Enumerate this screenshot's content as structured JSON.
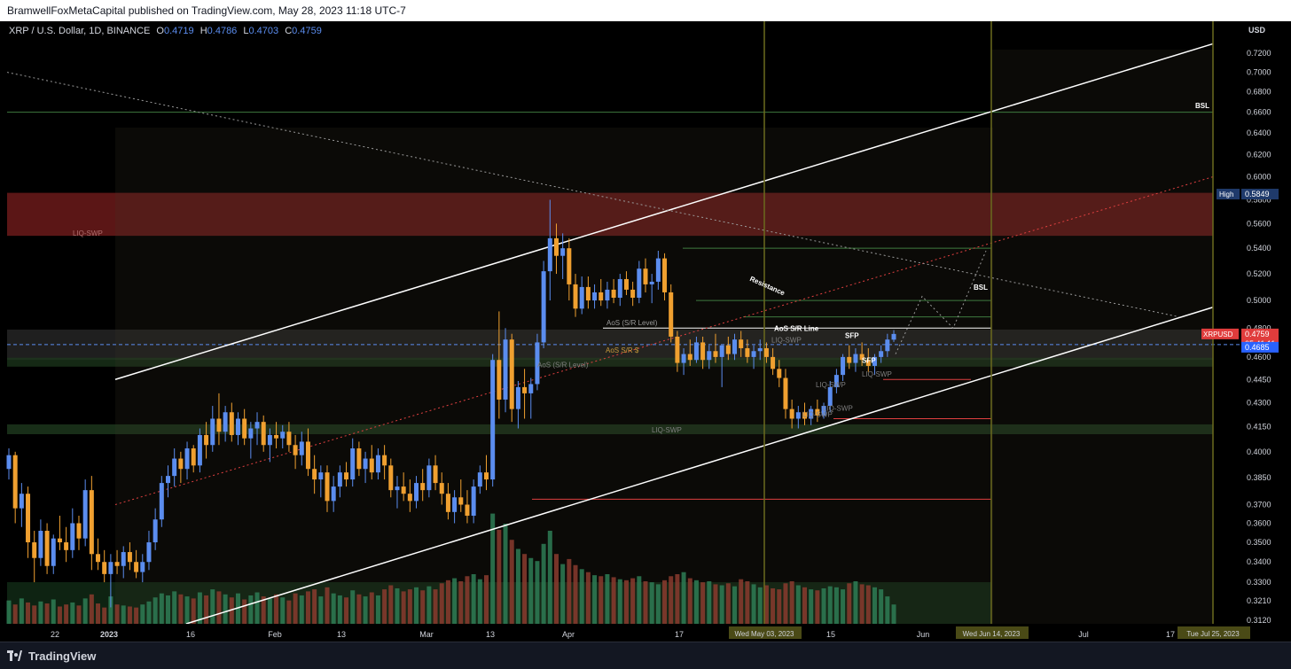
{
  "header": {
    "published_text": "BramwellFoxMetaCapital published on TradingView.com, May 28, 2023 11:18 UTC-7"
  },
  "legend": {
    "symbol": "XRP / U.S. Dollar, 1D, BINANCE",
    "open_label": "O",
    "open": "0.4719",
    "high_label": "H",
    "high": "0.4786",
    "low_label": "L",
    "low": "0.4703",
    "close_label": "C",
    "close": "0.4759"
  },
  "footer": {
    "brand": "TradingView"
  },
  "colors": {
    "bull": "#5b8def",
    "bear": "#f0a030",
    "bg": "#000000",
    "supply_zone": "#7a1e1e",
    "demand_zone": "#1e3a1e",
    "channel": "#ffffff",
    "midline": "#e04040"
  },
  "chart_data": {
    "type": "candlestick",
    "symbol": "XRPUSD",
    "timeframe": "1D",
    "exchange": "BINANCE",
    "currency_label": "USD",
    "y_axis": {
      "scale": "log",
      "range": [
        0.31,
        0.74
      ],
      "ticks": [
        "0.7200",
        "0.7000",
        "0.6800",
        "0.6600",
        "0.6400",
        "0.6200",
        "0.6000",
        "0.5800",
        "0.5600",
        "0.5400",
        "0.5200",
        "0.5000",
        "0.4800",
        "0.4600",
        "0.4450",
        "0.4300",
        "0.4150",
        "0.4000",
        "0.3850",
        "0.3700",
        "0.3600",
        "0.3500",
        "0.3400",
        "0.3300",
        "0.3210",
        "0.3120"
      ]
    },
    "x_axis": {
      "ticks": [
        "22",
        "2023",
        "16",
        "Feb",
        "13",
        "Mar",
        "13",
        "Apr",
        "17",
        "May",
        "15",
        "Jun",
        "12",
        "Jul",
        "17"
      ],
      "date_labels": [
        "Wed May 03, 2023",
        "Wed Jun 14, 2023",
        "Tue Jul 25, 2023"
      ]
    },
    "price_labels": [
      {
        "text": "High",
        "value": "0.5849"
      },
      {
        "text": "XRPUSD",
        "value": "0.4759"
      },
      {
        "text": "05:41:11",
        "value": ""
      },
      {
        "text": "",
        "value": "0.4685"
      }
    ],
    "annotations": [
      "BSL",
      "BSL",
      "LIQ-SWP",
      "LIQ-SWP",
      "LIQ-SWP",
      "LIQ-SWP",
      "LIQ-SWP",
      "LIQ-SWP",
      "LIQ-SWP",
      "AoS (S/R Level)",
      "AoS (S/R Level)",
      "AoS S/R $",
      "AoS S/R Line",
      "Resistance",
      "SFP",
      "SFP"
    ],
    "grid": false,
    "candles": [
      [
        0.39,
        0.402,
        0.384,
        0.398
      ],
      [
        0.398,
        0.4,
        0.36,
        0.368
      ],
      [
        0.368,
        0.382,
        0.358,
        0.376
      ],
      [
        0.376,
        0.38,
        0.342,
        0.35
      ],
      [
        0.35,
        0.356,
        0.33,
        0.342
      ],
      [
        0.342,
        0.362,
        0.338,
        0.356
      ],
      [
        0.356,
        0.36,
        0.334,
        0.338
      ],
      [
        0.338,
        0.354,
        0.334,
        0.352
      ],
      [
        0.352,
        0.364,
        0.346,
        0.35
      ],
      [
        0.35,
        0.358,
        0.34,
        0.346
      ],
      [
        0.346,
        0.368,
        0.342,
        0.36
      ],
      [
        0.36,
        0.364,
        0.346,
        0.352
      ],
      [
        0.352,
        0.384,
        0.348,
        0.378
      ],
      [
        0.378,
        0.386,
        0.336,
        0.344
      ],
      [
        0.344,
        0.352,
        0.336,
        0.34
      ],
      [
        0.34,
        0.346,
        0.33,
        0.334
      ],
      [
        0.334,
        0.344,
        0.318,
        0.34
      ],
      [
        0.34,
        0.346,
        0.334,
        0.338
      ],
      [
        0.338,
        0.348,
        0.332,
        0.345
      ],
      [
        0.345,
        0.35,
        0.336,
        0.34
      ],
      [
        0.34,
        0.346,
        0.332,
        0.335
      ],
      [
        0.335,
        0.344,
        0.33,
        0.34
      ],
      [
        0.34,
        0.356,
        0.336,
        0.35
      ],
      [
        0.35,
        0.368,
        0.346,
        0.362
      ],
      [
        0.362,
        0.386,
        0.358,
        0.382
      ],
      [
        0.382,
        0.392,
        0.374,
        0.386
      ],
      [
        0.386,
        0.402,
        0.38,
        0.396
      ],
      [
        0.396,
        0.4,
        0.382,
        0.39
      ],
      [
        0.39,
        0.406,
        0.384,
        0.402
      ],
      [
        0.402,
        0.404,
        0.388,
        0.392
      ],
      [
        0.392,
        0.414,
        0.388,
        0.41
      ],
      [
        0.41,
        0.418,
        0.396,
        0.404
      ],
      [
        0.404,
        0.428,
        0.4,
        0.42
      ],
      [
        0.42,
        0.436,
        0.404,
        0.412
      ],
      [
        0.412,
        0.428,
        0.406,
        0.424
      ],
      [
        0.424,
        0.43,
        0.406,
        0.41
      ],
      [
        0.41,
        0.424,
        0.404,
        0.42
      ],
      [
        0.42,
        0.426,
        0.404,
        0.408
      ],
      [
        0.408,
        0.418,
        0.396,
        0.414
      ],
      [
        0.414,
        0.424,
        0.404,
        0.418
      ],
      [
        0.418,
        0.422,
        0.4,
        0.404
      ],
      [
        0.404,
        0.414,
        0.394,
        0.41
      ],
      [
        0.41,
        0.418,
        0.402,
        0.408
      ],
      [
        0.408,
        0.416,
        0.402,
        0.412
      ],
      [
        0.412,
        0.418,
        0.4,
        0.404
      ],
      [
        0.404,
        0.41,
        0.39,
        0.398
      ],
      [
        0.398,
        0.412,
        0.392,
        0.406
      ],
      [
        0.406,
        0.414,
        0.386,
        0.39
      ],
      [
        0.39,
        0.398,
        0.376,
        0.384
      ],
      [
        0.384,
        0.392,
        0.374,
        0.388
      ],
      [
        0.388,
        0.392,
        0.366,
        0.372
      ],
      [
        0.372,
        0.386,
        0.366,
        0.38
      ],
      [
        0.38,
        0.392,
        0.374,
        0.388
      ],
      [
        0.388,
        0.394,
        0.38,
        0.384
      ],
      [
        0.384,
        0.408,
        0.38,
        0.402
      ],
      [
        0.402,
        0.406,
        0.386,
        0.39
      ],
      [
        0.39,
        0.4,
        0.382,
        0.396
      ],
      [
        0.396,
        0.404,
        0.384,
        0.388
      ],
      [
        0.388,
        0.402,
        0.384,
        0.398
      ],
      [
        0.398,
        0.404,
        0.384,
        0.392
      ],
      [
        0.392,
        0.396,
        0.374,
        0.378
      ],
      [
        0.378,
        0.386,
        0.368,
        0.38
      ],
      [
        0.38,
        0.388,
        0.372,
        0.376
      ],
      [
        0.376,
        0.384,
        0.366,
        0.372
      ],
      [
        0.372,
        0.386,
        0.368,
        0.382
      ],
      [
        0.382,
        0.39,
        0.372,
        0.378
      ],
      [
        0.378,
        0.396,
        0.374,
        0.392
      ],
      [
        0.392,
        0.398,
        0.378,
        0.382
      ],
      [
        0.382,
        0.388,
        0.37,
        0.376
      ],
      [
        0.376,
        0.382,
        0.362,
        0.366
      ],
      [
        0.366,
        0.378,
        0.36,
        0.374
      ],
      [
        0.374,
        0.384,
        0.366,
        0.37
      ],
      [
        0.37,
        0.378,
        0.36,
        0.364
      ],
      [
        0.364,
        0.384,
        0.36,
        0.38
      ],
      [
        0.38,
        0.392,
        0.376,
        0.388
      ],
      [
        0.388,
        0.398,
        0.378,
        0.384
      ],
      [
        0.384,
        0.462,
        0.38,
        0.458
      ],
      [
        0.458,
        0.492,
        0.42,
        0.432
      ],
      [
        0.432,
        0.48,
        0.424,
        0.472
      ],
      [
        0.472,
        0.476,
        0.418,
        0.426
      ],
      [
        0.426,
        0.444,
        0.414,
        0.44
      ],
      [
        0.44,
        0.452,
        0.42,
        0.436
      ],
      [
        0.436,
        0.446,
        0.42,
        0.442
      ],
      [
        0.442,
        0.476,
        0.438,
        0.47
      ],
      [
        0.47,
        0.53,
        0.466,
        0.522
      ],
      [
        0.522,
        0.58,
        0.5,
        0.548
      ],
      [
        0.548,
        0.56,
        0.52,
        0.534
      ],
      [
        0.534,
        0.552,
        0.516,
        0.54
      ],
      [
        0.54,
        0.548,
        0.5,
        0.512
      ],
      [
        0.512,
        0.52,
        0.488,
        0.494
      ],
      [
        0.494,
        0.518,
        0.49,
        0.51
      ],
      [
        0.51,
        0.518,
        0.494,
        0.5
      ],
      [
        0.5,
        0.512,
        0.494,
        0.506
      ],
      [
        0.506,
        0.516,
        0.496,
        0.5
      ],
      [
        0.5,
        0.514,
        0.494,
        0.508
      ],
      [
        0.508,
        0.516,
        0.498,
        0.502
      ],
      [
        0.502,
        0.52,
        0.496,
        0.516
      ],
      [
        0.516,
        0.522,
        0.504,
        0.508
      ],
      [
        0.508,
        0.514,
        0.496,
        0.502
      ],
      [
        0.502,
        0.53,
        0.498,
        0.524
      ],
      [
        0.524,
        0.532,
        0.506,
        0.512
      ],
      [
        0.512,
        0.52,
        0.498,
        0.514
      ],
      [
        0.514,
        0.538,
        0.508,
        0.532
      ],
      [
        0.532,
        0.536,
        0.5,
        0.506
      ],
      [
        0.506,
        0.512,
        0.47,
        0.474
      ],
      [
        0.474,
        0.478,
        0.45,
        0.456
      ],
      [
        0.456,
        0.466,
        0.448,
        0.462
      ],
      [
        0.462,
        0.472,
        0.454,
        0.458
      ],
      [
        0.458,
        0.474,
        0.456,
        0.47
      ],
      [
        0.47,
        0.474,
        0.452,
        0.458
      ],
      [
        0.458,
        0.468,
        0.452,
        0.464
      ],
      [
        0.464,
        0.476,
        0.456,
        0.46
      ],
      [
        0.46,
        0.466,
        0.44,
        0.468
      ],
      [
        0.468,
        0.474,
        0.458,
        0.462
      ],
      [
        0.462,
        0.476,
        0.458,
        0.472
      ],
      [
        0.472,
        0.478,
        0.46,
        0.466
      ],
      [
        0.466,
        0.472,
        0.456,
        0.46
      ],
      [
        0.46,
        0.468,
        0.452,
        0.464
      ],
      [
        0.464,
        0.472,
        0.458,
        0.466
      ],
      [
        0.466,
        0.47,
        0.456,
        0.46
      ],
      [
        0.46,
        0.466,
        0.448,
        0.452
      ],
      [
        0.452,
        0.458,
        0.44,
        0.446
      ],
      [
        0.446,
        0.452,
        0.42,
        0.426
      ],
      [
        0.426,
        0.432,
        0.414,
        0.42
      ],
      [
        0.42,
        0.428,
        0.414,
        0.424
      ],
      [
        0.424,
        0.43,
        0.416,
        0.42
      ],
      [
        0.42,
        0.428,
        0.416,
        0.426
      ],
      [
        0.426,
        0.432,
        0.418,
        0.422
      ],
      [
        0.422,
        0.43,
        0.42,
        0.428
      ],
      [
        0.428,
        0.444,
        0.424,
        0.44
      ],
      [
        0.44,
        0.452,
        0.436,
        0.448
      ],
      [
        0.448,
        0.462,
        0.444,
        0.46
      ],
      [
        0.46,
        0.468,
        0.452,
        0.456
      ],
      [
        0.456,
        0.466,
        0.45,
        0.462
      ],
      [
        0.462,
        0.47,
        0.454,
        0.458
      ],
      [
        0.458,
        0.466,
        0.45,
        0.454
      ],
      [
        0.454,
        0.462,
        0.448,
        0.46
      ],
      [
        0.46,
        0.468,
        0.456,
        0.464
      ],
      [
        0.464,
        0.476,
        0.46,
        0.472
      ],
      [
        0.4719,
        0.4786,
        0.4703,
        0.4759
      ]
    ],
    "volume": [
      48,
      40,
      52,
      44,
      38,
      46,
      42,
      50,
      36,
      40,
      44,
      38,
      52,
      60,
      42,
      34,
      56,
      40,
      38,
      36,
      34,
      40,
      46,
      54,
      62,
      58,
      66,
      60,
      56,
      52,
      64,
      58,
      70,
      66,
      60,
      54,
      62,
      50,
      58,
      64,
      56,
      52,
      60,
      54,
      48,
      62,
      58,
      66,
      70,
      56,
      74,
      62,
      58,
      54,
      68,
      60,
      56,
      64,
      58,
      70,
      78,
      72,
      66,
      70,
      74,
      68,
      76,
      70,
      82,
      88,
      92,
      86,
      96,
      100,
      90,
      98,
      220,
      188,
      200,
      168,
      150,
      140,
      132,
      126,
      160,
      186,
      140,
      120,
      130,
      118,
      110,
      104,
      98,
      96,
      100,
      94,
      90,
      88,
      92,
      96,
      86,
      84,
      80,
      88,
      96,
      100,
      104,
      92,
      88,
      84,
      86,
      80,
      78,
      82,
      76,
      90,
      86,
      80,
      74,
      78,
      72,
      70,
      82,
      86,
      78,
      74,
      70,
      68,
      72,
      76,
      74,
      70,
      82,
      86,
      80,
      78,
      74,
      70,
      56,
      40
    ]
  }
}
